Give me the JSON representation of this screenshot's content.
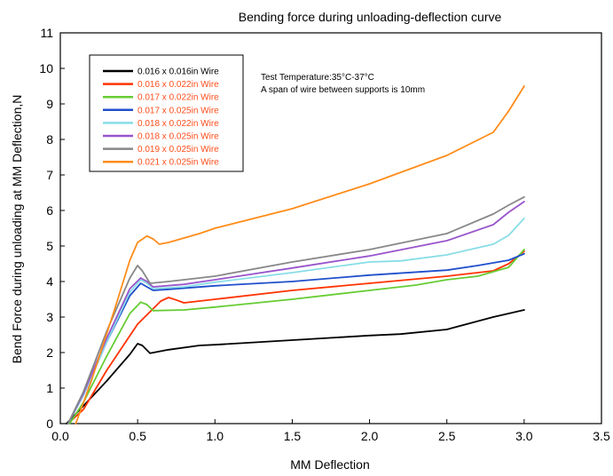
{
  "chart_data": {
    "type": "line",
    "title": "Bending force during unloading-deflection curve",
    "xlabel": "MM Deflection",
    "ylabel": "Bend Force during unloading at MM Deflection,N",
    "xlim": [
      0.0,
      3.5
    ],
    "ylim": [
      0,
      11
    ],
    "x_ticks": [
      "0.0",
      "0.5",
      "1.0",
      "1.5",
      "2.0",
      "2.5",
      "3.0",
      "3.5"
    ],
    "y_ticks": [
      "0",
      "1",
      "2",
      "3",
      "4",
      "5",
      "6",
      "7",
      "8",
      "9",
      "10",
      "11"
    ],
    "grid": false,
    "legend_position": "top-left",
    "annotations": [
      "Test Temperature:35°C-37°C",
      "A span of wire between supports is 10mm"
    ],
    "series": [
      {
        "name": "0.016 x 0.016in Wire",
        "color": "#000000",
        "x": [
          0.04,
          0.15,
          0.3,
          0.45,
          0.5,
          0.53,
          0.58,
          0.7,
          0.9,
          1.0,
          1.5,
          2.0,
          2.2,
          2.5,
          2.8,
          3.0
        ],
        "y": [
          0.0,
          0.5,
          1.2,
          1.95,
          2.25,
          2.2,
          1.98,
          2.08,
          2.2,
          2.22,
          2.35,
          2.48,
          2.52,
          2.65,
          3.0,
          3.2
        ]
      },
      {
        "name": "0.016 x 0.022in Wire",
        "color": "#ff3300",
        "x": [
          0.05,
          0.15,
          0.3,
          0.5,
          0.65,
          0.7,
          0.75,
          0.8,
          1.0,
          1.5,
          2.0,
          2.5,
          2.8,
          2.9,
          3.0
        ],
        "y": [
          0.0,
          0.4,
          1.5,
          2.8,
          3.45,
          3.55,
          3.48,
          3.4,
          3.5,
          3.75,
          3.95,
          4.15,
          4.3,
          4.5,
          4.85
        ]
      },
      {
        "name": "0.017 x 0.022in Wire",
        "color": "#66cc33",
        "x": [
          0.06,
          0.15,
          0.3,
          0.45,
          0.52,
          0.56,
          0.6,
          0.8,
          1.0,
          1.5,
          2.0,
          2.3,
          2.5,
          2.7,
          2.9,
          3.0
        ],
        "y": [
          0.0,
          0.6,
          1.9,
          3.1,
          3.42,
          3.35,
          3.18,
          3.2,
          3.28,
          3.5,
          3.75,
          3.9,
          4.05,
          4.15,
          4.4,
          4.9
        ]
      },
      {
        "name": "0.017 x 0.025in Wire",
        "color": "#1f4fcc",
        "x": [
          0.05,
          0.15,
          0.3,
          0.45,
          0.52,
          0.56,
          0.6,
          0.7,
          1.0,
          1.5,
          2.0,
          2.5,
          2.7,
          2.9,
          3.0
        ],
        "y": [
          0.0,
          0.8,
          2.3,
          3.6,
          3.95,
          3.85,
          3.75,
          3.78,
          3.88,
          4.0,
          4.18,
          4.32,
          4.45,
          4.6,
          4.78
        ]
      },
      {
        "name": "0.018 x 0.022in Wire",
        "color": "#88dde6",
        "x": [
          0.05,
          0.15,
          0.3,
          0.45,
          0.52,
          0.56,
          0.6,
          0.8,
          1.0,
          1.5,
          2.0,
          2.2,
          2.5,
          2.8,
          2.9,
          3.0
        ],
        "y": [
          0.0,
          0.8,
          2.3,
          3.7,
          4.05,
          3.95,
          3.8,
          3.85,
          3.98,
          4.25,
          4.55,
          4.58,
          4.75,
          5.05,
          5.3,
          5.78
        ]
      },
      {
        "name": "0.018 x 0.025in Wire",
        "color": "#9955cc",
        "x": [
          0.05,
          0.15,
          0.3,
          0.45,
          0.52,
          0.56,
          0.6,
          0.8,
          1.0,
          1.5,
          2.0,
          2.5,
          2.8,
          2.9,
          3.0
        ],
        "y": [
          0.0,
          0.85,
          2.4,
          3.8,
          4.1,
          4.0,
          3.85,
          3.92,
          4.05,
          4.38,
          4.72,
          5.15,
          5.6,
          5.95,
          6.25
        ]
      },
      {
        "name": "0.019 x 0.025in Wire",
        "color": "#888888",
        "x": [
          0.05,
          0.15,
          0.3,
          0.45,
          0.5,
          0.53,
          0.58,
          0.7,
          1.0,
          1.5,
          2.0,
          2.5,
          2.8,
          2.9,
          3.0
        ],
        "y": [
          0.0,
          0.9,
          2.6,
          4.1,
          4.45,
          4.3,
          3.95,
          4.0,
          4.15,
          4.55,
          4.9,
          5.35,
          5.9,
          6.15,
          6.38
        ]
      },
      {
        "name": "0.021 x 0.025in Wire",
        "color": "#ff8c1a",
        "x": [
          0.1,
          0.2,
          0.35,
          0.45,
          0.5,
          0.56,
          0.6,
          0.64,
          0.7,
          0.9,
          1.0,
          1.5,
          2.0,
          2.5,
          2.8,
          2.9,
          3.0
        ],
        "y": [
          0.0,
          1.2,
          3.2,
          4.6,
          5.1,
          5.28,
          5.2,
          5.05,
          5.1,
          5.35,
          5.5,
          6.05,
          6.75,
          7.55,
          8.2,
          8.8,
          9.5
        ]
      }
    ]
  }
}
